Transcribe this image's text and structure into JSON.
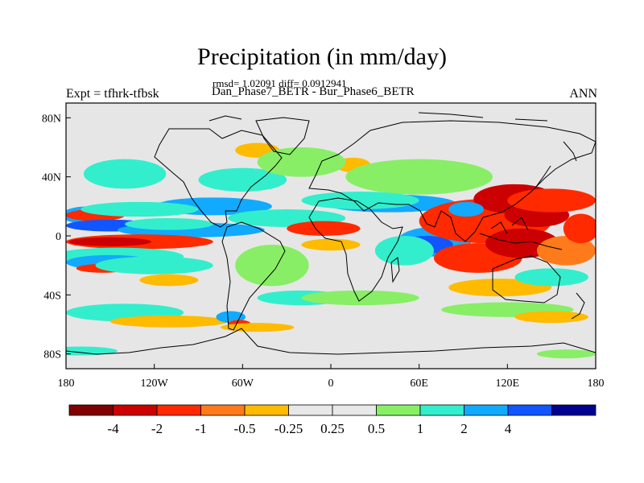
{
  "figure": {
    "title": "Precipitation (in mm/day)",
    "stats": "rmsd= 1.02091 diff= 0.0912941",
    "subtitle": "Dan_Phase7_BETR - Bur_Phase6_BETR",
    "left_label": "Expt = tfhrk-tfbsk",
    "right_label": "ANN"
  },
  "axes": {
    "lat_ticks": [
      {
        "label": "80N",
        "lat": 80
      },
      {
        "label": "40N",
        "lat": 40
      },
      {
        "label": "0",
        "lat": 0
      },
      {
        "label": "40S",
        "lat": -40
      },
      {
        "label": "80S",
        "lat": -80
      }
    ],
    "lon_ticks": [
      {
        "label": "180",
        "lon": -180
      },
      {
        "label": "120W",
        "lon": -120
      },
      {
        "label": "60W",
        "lon": -60
      },
      {
        "label": "0",
        "lon": 0
      },
      {
        "label": "60E",
        "lon": 60
      },
      {
        "label": "120E",
        "lon": 120
      },
      {
        "label": "180",
        "lon": 180
      }
    ],
    "lat_range": [
      -90,
      90
    ],
    "lon_range": [
      -180,
      180
    ]
  },
  "colorbar": {
    "colors": [
      "#800000",
      "#cc0000",
      "#ff2a00",
      "#ff7a1a",
      "#ffbb00",
      "#e8e8e8",
      "#e8e8e8",
      "#88ee66",
      "#33eecc",
      "#11aaff",
      "#1155ff",
      "#000090"
    ],
    "labels": [
      "-4",
      "-2",
      "-1",
      "-0.5",
      "-0.25",
      "0.25",
      "0.5",
      "1",
      "2",
      "4"
    ],
    "missing_color": "#e6e6e6"
  },
  "levels": {
    "strong_dry": "#cc0000",
    "dry": "#ff2a00",
    "mod_dry": "#ff7a1a",
    "weak_dry": "#ffbb00",
    "weak_wet": "#88ee66",
    "mod_wet": "#33eecc",
    "wet": "#11aaff",
    "strong_wet": "#1155ff",
    "extreme_wet": "#000090",
    "extreme_dry": "#800000"
  }
}
